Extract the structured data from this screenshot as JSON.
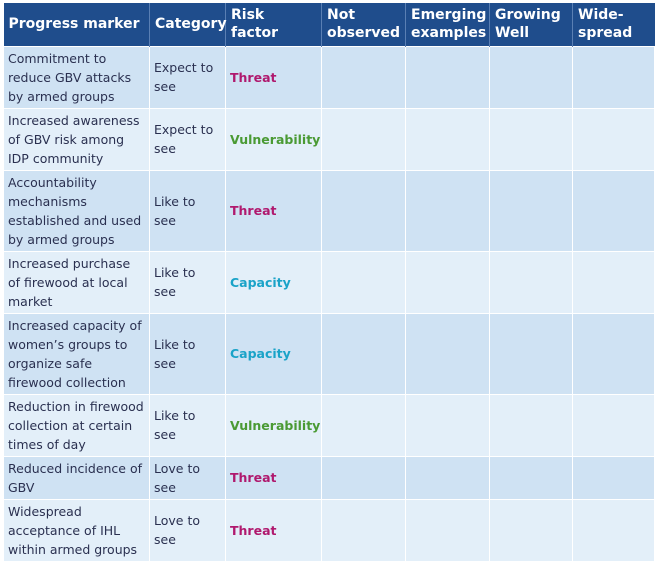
{
  "headers": {
    "progress_marker": "Progress marker",
    "category": "Category",
    "risk_factor": "Risk factor",
    "not_observed": "Not observed",
    "emerging_examples": "Emerging examples",
    "growing_well": "Growing Well",
    "widespread": "Wide-spread"
  },
  "rows": [
    {
      "marker": "Commitment to reduce GBV attacks by armed groups",
      "category": "Expect to see",
      "risk": "Threat"
    },
    {
      "marker": "Increased awareness of GBV risk among IDP community",
      "category": "Expect to see",
      "risk": "Vulnerability"
    },
    {
      "marker": "Accountability mechanisms established and used by armed groups",
      "category": "Like to see",
      "risk": "Threat"
    },
    {
      "marker": "Increased purchase of firewood at local market",
      "category": "Like to see",
      "risk": "Capacity"
    },
    {
      "marker": "Increased capacity of women’s groups to organize safe firewood collection",
      "category": "Like to see",
      "risk": "Capacity"
    },
    {
      "marker": "Reduction in firewood collection at certain times of day",
      "category": "Like to see",
      "risk": "Vulnerability"
    },
    {
      "marker": "Reduced incidence of GBV",
      "category": "Love to see",
      "risk": "Threat"
    },
    {
      "marker": "Widespread acceptance of IHL within armed groups",
      "category": "Love to see",
      "risk": "Threat"
    }
  ],
  "colors": {
    "header_bg": "#1f4d8c",
    "row_odd": "#cfe2f3",
    "row_even": "#e3eff9",
    "threat": "#b0196e",
    "vulnerability": "#4a9a34",
    "capacity": "#1aa3c8"
  }
}
